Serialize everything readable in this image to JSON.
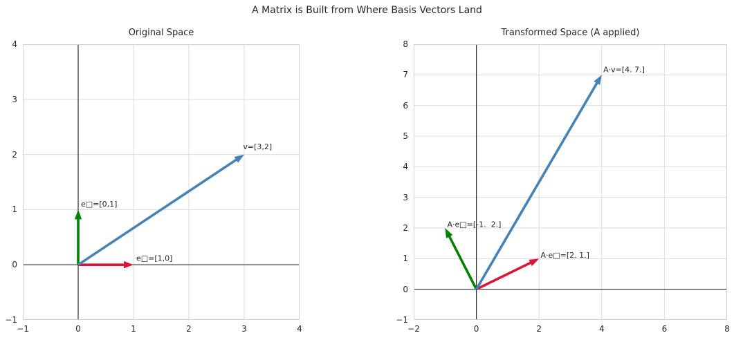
{
  "figure": {
    "title": "A Matrix is Built from Where Basis Vectors Land",
    "background": "#ffffff",
    "text_color": "#262626",
    "grid_color": "#dcdcdc",
    "spine_color": "#d0d0d0",
    "axis_line_color": "#2b2b2b"
  },
  "chart_data": [
    {
      "type": "scatter",
      "subtype": "quiver",
      "title": "Original Space",
      "xlabel": "",
      "ylabel": "",
      "xlim": [
        -1,
        4
      ],
      "ylim": [
        -1,
        4
      ],
      "xticks": [
        -1,
        0,
        1,
        2,
        3,
        4
      ],
      "yticks": [
        -1,
        0,
        1,
        2,
        3,
        4
      ],
      "grid": true,
      "legend": "none",
      "vectors": [
        {
          "name": "basis-e1",
          "from": [
            0,
            0
          ],
          "to": [
            1,
            0
          ],
          "color": "#dc143c",
          "label": "e□=[1,0]",
          "label_at": [
            1.05,
            0.11
          ]
        },
        {
          "name": "basis-e2",
          "from": [
            0,
            0
          ],
          "to": [
            0,
            1
          ],
          "color": "#008000",
          "label": "e□=[0,1]",
          "label_at": [
            0.05,
            1.09
          ]
        },
        {
          "name": "vector-v",
          "from": [
            0,
            0
          ],
          "to": [
            3,
            2
          ],
          "color": "#4682b4",
          "label": "v=[3,2]",
          "label_at": [
            2.98,
            2.13
          ]
        }
      ]
    },
    {
      "type": "scatter",
      "subtype": "quiver",
      "title": "Transformed Space (A applied)",
      "xlabel": "",
      "ylabel": "",
      "xlim": [
        -2,
        8
      ],
      "ylim": [
        -1,
        8
      ],
      "xticks": [
        -2,
        0,
        2,
        4,
        6,
        8
      ],
      "yticks": [
        -1,
        0,
        1,
        2,
        3,
        4,
        5,
        6,
        7,
        8
      ],
      "grid": true,
      "legend": "none",
      "vectors": [
        {
          "name": "transformed-e1",
          "from": [
            0,
            0
          ],
          "to": [
            2,
            1
          ],
          "color": "#dc143c",
          "label": "A·e□=[2. 1.]",
          "label_at": [
            2.05,
            1.1
          ]
        },
        {
          "name": "transformed-e2",
          "from": [
            0,
            0
          ],
          "to": [
            -1,
            2
          ],
          "color": "#008000",
          "label": "A·e□=[-1.  2.]",
          "label_at": [
            -0.93,
            2.1
          ]
        },
        {
          "name": "transformed-v",
          "from": [
            0,
            0
          ],
          "to": [
            4,
            7
          ],
          "color": "#4682b4",
          "label": "A·v=[4. 7.]",
          "label_at": [
            4.05,
            7.15
          ]
        }
      ]
    }
  ]
}
